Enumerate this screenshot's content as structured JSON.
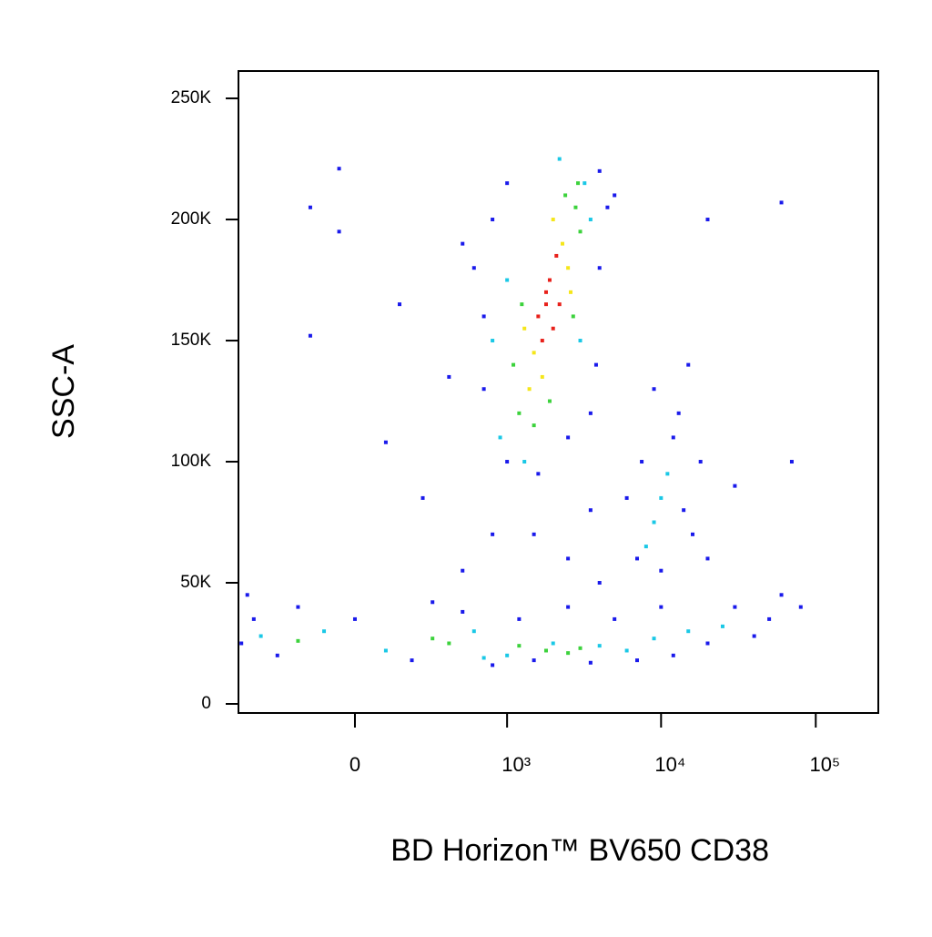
{
  "chart_data": {
    "type": "scatter",
    "xlabel": "BD Horizon™ BV650 CD38",
    "ylabel": "SSC-A",
    "xscale": "biexponential",
    "xlim": [
      -576,
      253700
    ],
    "ylim": [
      -3760,
      261300
    ],
    "xticks": [
      0,
      {
        "value": 1000,
        "label": "10³"
      },
      {
        "value": 10000,
        "label": "10⁴"
      },
      {
        "value": 100000,
        "label": "10⁵"
      }
    ],
    "yticks": [
      0,
      {
        "value": 50000,
        "label": "50K"
      },
      {
        "value": 100000,
        "label": "100K"
      },
      {
        "value": 150000,
        "label": "150K"
      },
      {
        "value": 200000,
        "label": "200K"
      },
      {
        "value": 250000,
        "label": "250K"
      }
    ],
    "series": [
      {
        "color": "#1a1aeb",
        "x": [
          700,
          600,
          800,
          1000,
          4000,
          4500,
          4000,
          3800,
          1000,
          1600,
          2500,
          700,
          500,
          5000,
          3500,
          7000,
          7500,
          12000,
          14000,
          13000,
          9000,
          16000,
          6000,
          10000,
          18000,
          -550,
          -450,
          -300,
          -200,
          0,
          200,
          300,
          500,
          800,
          1200,
          1500,
          2500,
          3500,
          5000,
          7000,
          10000,
          12000,
          20000,
          30000,
          40000,
          50000,
          60000,
          80000,
          -500,
          -50,
          -150,
          -50,
          150,
          -150,
          400,
          100,
          1500,
          2500,
          3500,
          800,
          500,
          4000,
          20000,
          30000,
          60000,
          20000,
          70000,
          15000,
          250
        ],
        "values": [
          130000,
          180000,
          200000,
          215000,
          220000,
          205000,
          180000,
          140000,
          100000,
          95000,
          110000,
          160000,
          190000,
          210000,
          120000,
          60000,
          100000,
          110000,
          80000,
          120000,
          130000,
          70000,
          85000,
          55000,
          100000,
          25000,
          35000,
          20000,
          40000,
          35000,
          18000,
          42000,
          38000,
          16000,
          35000,
          18000,
          40000,
          17000,
          35000,
          18000,
          40000,
          20000,
          25000,
          40000,
          28000,
          35000,
          45000,
          40000,
          45000,
          221000,
          205000,
          195000,
          165000,
          152000,
          135000,
          108000,
          70000,
          60000,
          80000,
          70000,
          55000,
          50000,
          60000,
          90000,
          207000,
          200000,
          100000,
          140000,
          85000
        ]
      },
      {
        "color": "#1ac8e6",
        "x": [
          900,
          3200,
          1000,
          3500,
          1300,
          2200,
          800,
          3000,
          -400,
          -100,
          100,
          600,
          1000,
          2000,
          4000,
          6000,
          9000,
          15000,
          25000,
          700,
          9000,
          10000,
          8000,
          11000
        ],
        "values": [
          110000,
          215000,
          175000,
          200000,
          100000,
          225000,
          150000,
          150000,
          28000,
          30000,
          22000,
          30000,
          20000,
          25000,
          24000,
          22000,
          27000,
          30000,
          32000,
          19000,
          75000,
          85000,
          65000,
          95000
        ]
      },
      {
        "color": "#3cd23c",
        "x": [
          1200,
          2800,
          1500,
          3000,
          1100,
          2400,
          1900,
          2700,
          1250,
          2900,
          300,
          400,
          1800,
          2500,
          3000,
          -200,
          1200
        ],
        "values": [
          120000,
          205000,
          115000,
          195000,
          140000,
          210000,
          125000,
          160000,
          165000,
          215000,
          27000,
          25000,
          22000,
          21000,
          23000,
          26000,
          24000
        ]
      },
      {
        "color": "#f5e61a",
        "x": [
          1500,
          2300,
          2500,
          1400,
          2000,
          1700,
          2600,
          1300
        ],
        "values": [
          145000,
          190000,
          180000,
          130000,
          200000,
          135000,
          170000,
          155000
        ]
      },
      {
        "color": "#e8201a",
        "x": [
          1800,
          1900,
          2000,
          1700,
          2100,
          1800,
          1600,
          2200
        ],
        "values": [
          165000,
          175000,
          155000,
          150000,
          185000,
          170000,
          160000,
          165000
        ]
      }
    ]
  }
}
